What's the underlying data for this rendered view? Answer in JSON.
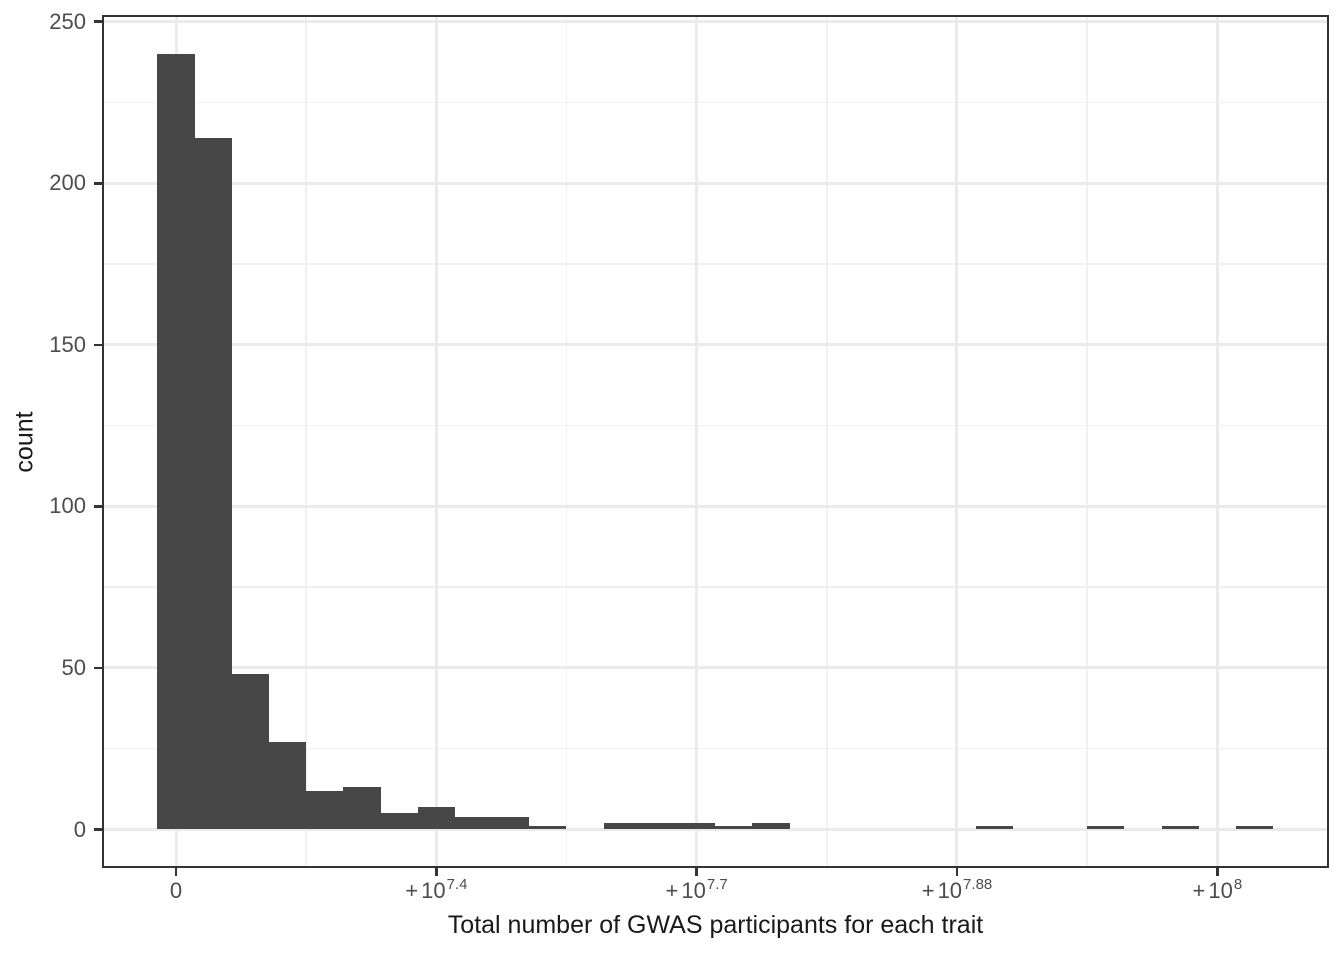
{
  "chart_data": {
    "type": "histogram",
    "title": "",
    "xlabel": "Total number of GWAS participants for each trait",
    "ylabel": "count",
    "x_tick_labels": [
      "0",
      "+10^7.4",
      "+10^7.7",
      "+10^7.88",
      "+10^8"
    ],
    "y_tick_labels": [
      "0",
      "50",
      "100",
      "150",
      "200",
      "250"
    ],
    "y_ticks": [
      0,
      50,
      100,
      150,
      200,
      250
    ],
    "y_minor_gridlines": [
      25,
      75,
      125,
      175,
      225
    ],
    "ylim": [
      0,
      250
    ],
    "x_scale_note": "pseudo-log axis; major ticks equally spaced with minor gridlines at interval midpoints",
    "grid": true,
    "legend": false,
    "bins_per_tick_interval": 7,
    "first_bin_centered_on_first_tick": true,
    "bin_counts": [
      240,
      214,
      48,
      27,
      12,
      13,
      5,
      7,
      4,
      4,
      1,
      0,
      2,
      2,
      2,
      1,
      2,
      0,
      0,
      0,
      0,
      0,
      1,
      0,
      0,
      1,
      0,
      1,
      0,
      1
    ],
    "colors": {
      "bar_fill": "#474747",
      "grid_major": "#EBEBEB",
      "grid_minor": "#F0F0F0",
      "panel_border": "#333333",
      "tick_mark": "#333333",
      "axis_text": "#4D4D4D",
      "axis_title": "#1A1A1A",
      "background": "#FFFFFF"
    }
  }
}
